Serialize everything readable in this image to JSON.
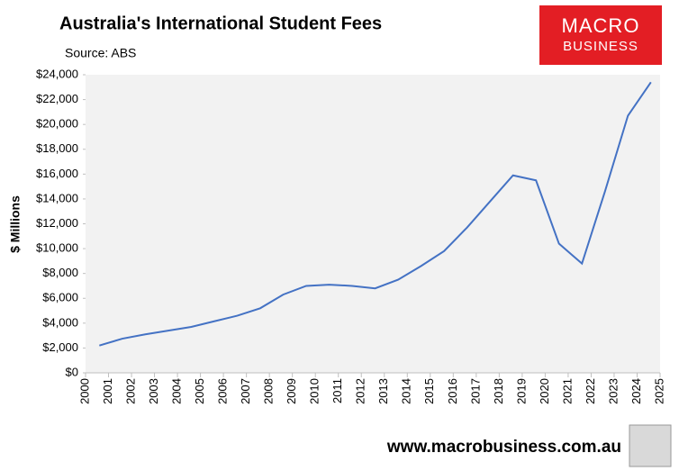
{
  "chart_data": {
    "type": "line",
    "title": "Australia's International Student Fees",
    "subtitle": "Source: ABS",
    "ylabel": "$ Millions",
    "logo": [
      "MACRO",
      "BUSINESS"
    ],
    "footer": "www.macrobusiness.com.au",
    "x": [
      2000.6,
      2001.6,
      2002.6,
      2003.6,
      2004.6,
      2005.6,
      2006.6,
      2007.6,
      2008.6,
      2009.6,
      2010.6,
      2011.6,
      2012.6,
      2013.6,
      2014.6,
      2015.6,
      2016.6,
      2017.6,
      2018.6,
      2019.6,
      2020.6,
      2021.6,
      2022.6,
      2023.6,
      2024.6
    ],
    "series": [
      {
        "color": "#4472c4",
        "values": [
          2200,
          2750,
          3100,
          3400,
          3700,
          4150,
          4600,
          5200,
          6300,
          7000,
          7100,
          7000,
          6800,
          7500,
          8600,
          9800,
          11700,
          13800,
          15900,
          15500,
          10400,
          8800,
          14600,
          20700,
          23400
        ]
      }
    ],
    "xlim": [
      2000,
      2025
    ],
    "xticks": [
      2000,
      2001,
      2002,
      2003,
      2004,
      2005,
      2006,
      2007,
      2008,
      2009,
      2010,
      2011,
      2012,
      2013,
      2014,
      2015,
      2016,
      2017,
      2018,
      2019,
      2020,
      2021,
      2022,
      2023,
      2024,
      2025
    ],
    "ylim": [
      0,
      24000
    ],
    "yticks": [
      {
        "value": 0,
        "label": "$0"
      },
      {
        "value": 2000,
        "label": "$2,000"
      },
      {
        "value": 4000,
        "label": "$4,000"
      },
      {
        "value": 6000,
        "label": "$6,000"
      },
      {
        "value": 8000,
        "label": "$8,000"
      },
      {
        "value": 10000,
        "label": "$10,000"
      },
      {
        "value": 12000,
        "label": "$12,000"
      },
      {
        "value": 14000,
        "label": "$14,000"
      },
      {
        "value": 16000,
        "label": "$16,000"
      },
      {
        "value": 18000,
        "label": "$18,000"
      },
      {
        "value": 20000,
        "label": "$20,000"
      },
      {
        "value": 22000,
        "label": "$22,000"
      },
      {
        "value": 24000,
        "label": "$24,000"
      }
    ],
    "grid": false,
    "plot_background": "#f2f2f2"
  }
}
